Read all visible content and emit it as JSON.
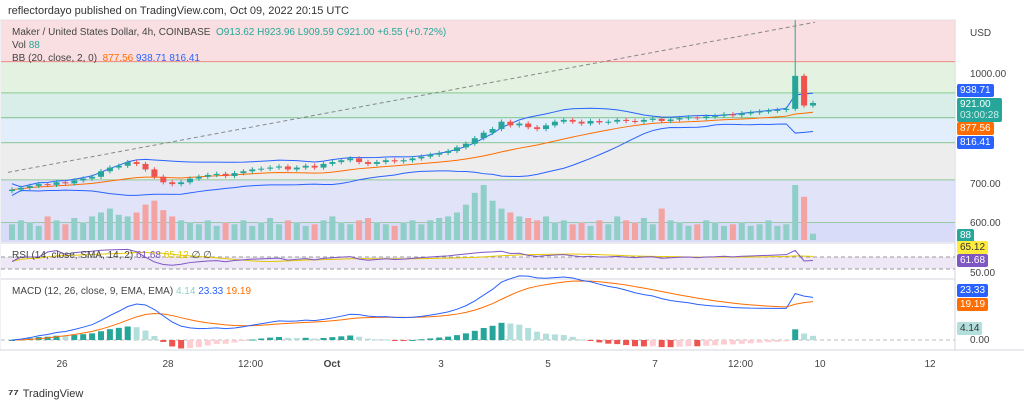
{
  "header": {
    "published": "reflectordayo published on TradingView.com, Oct 09, 2022 20:15 UTC"
  },
  "legend": {
    "symbol": "Maker / United States Dollar, 4h, COINBASE",
    "o": "O913.62",
    "h": "H923.96",
    "l": "L909.59",
    "c": "C921.00",
    "chg": "+6.55 (+0.72%)",
    "vol_label": "Vol",
    "vol": "88",
    "bb_label": "BB (20, close, 2, 0)",
    "bb_mid": "877.56",
    "bb_up": "938.71",
    "bb_low": "816.41",
    "rsi_label": "RSI (14, close, SMA, 14, 2)",
    "rsi": "61.68",
    "rsi_ma": "65.12",
    "rsi_x": "∅ ∅",
    "macd_label": "MACD (12, 26, close, 9, EMA, EMA)",
    "hist": "4.14",
    "macd": "23.33",
    "signal": "19.19"
  },
  "axis": {
    "currency": "USD",
    "price_ticks": [
      "1000.00",
      "700.00",
      "600.00"
    ],
    "macd_zero": "0.00",
    "rsi_tick": "50.00"
  },
  "tags": {
    "bb_up": "938.71",
    "price": "921.00",
    "countdown": "03:00:28",
    "bb_mid": "877.56",
    "bb_low": "816.41",
    "vol": "88",
    "rsi_ma": "65.12",
    "rsi": "61.68",
    "macd": "23.33",
    "signal": "19.19",
    "hist": "4.14"
  },
  "time_axis": [
    "26",
    "28",
    "12:00",
    "Oct",
    "3",
    "5",
    "7",
    "12:00",
    "10",
    "12"
  ],
  "footer": {
    "logo": "TradingView"
  },
  "colors": {
    "up": "#26a69a",
    "down": "#ef5350",
    "bb": "#2962ff",
    "basis": "#ff6d00",
    "rsi": "#7e57c2",
    "rsi_ma": "#ffeb3b"
  },
  "chart_data": {
    "type": "candlestick",
    "ylim": [
      560,
      1150
    ],
    "levels": [
      1033,
      948,
      880,
      812,
      711,
      594
    ],
    "trendline": [
      732,
      1141
    ],
    "closes": [
      685,
      690,
      695,
      700,
      698,
      705,
      702,
      710,
      715,
      720,
      735,
      745,
      750,
      760,
      755,
      740,
      720,
      705,
      700,
      705,
      715,
      720,
      725,
      728,
      722,
      730,
      735,
      740,
      742,
      745,
      748,
      740,
      745,
      750,
      745,
      755,
      760,
      765,
      770,
      760,
      755,
      760,
      765,
      762,
      765,
      770,
      775,
      780,
      785,
      790,
      800,
      810,
      825,
      840,
      850,
      870,
      860,
      865,
      855,
      850,
      860,
      870,
      875,
      870,
      865,
      872,
      868,
      870,
      875,
      872,
      870,
      875,
      878,
      872,
      876,
      880,
      882,
      880,
      884,
      886,
      890,
      888,
      893,
      895,
      898,
      900,
      902,
      905,
      995,
      914,
      921
    ],
    "spike_high": 1147,
    "volumes": [
      20,
      25,
      22,
      18,
      30,
      25,
      20,
      28,
      22,
      30,
      35,
      40,
      32,
      30,
      35,
      45,
      50,
      38,
      30,
      25,
      22,
      20,
      25,
      18,
      22,
      20,
      25,
      18,
      22,
      28,
      20,
      25,
      22,
      18,
      20,
      25,
      30,
      22,
      20,
      25,
      28,
      22,
      20,
      18,
      22,
      25,
      20,
      25,
      28,
      30,
      35,
      45,
      60,
      70,
      50,
      40,
      35,
      30,
      28,
      25,
      30,
      22,
      25,
      20,
      22,
      18,
      25,
      20,
      30,
      25,
      22,
      28,
      20,
      40,
      25,
      22,
      18,
      20,
      25,
      22,
      18,
      20,
      22,
      18,
      20,
      25,
      18,
      20,
      70,
      55,
      8
    ]
  }
}
